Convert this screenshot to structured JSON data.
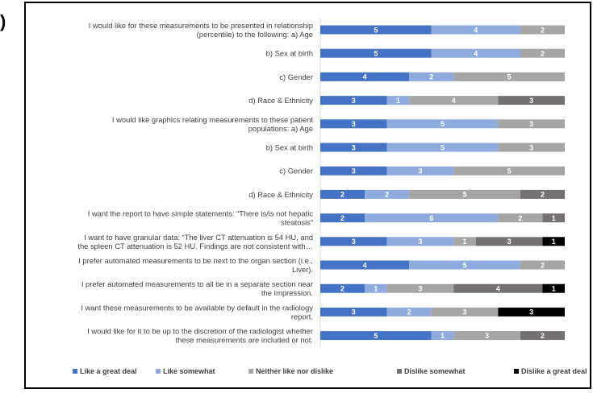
{
  "panel_label": ")",
  "chart_data": {
    "type": "bar",
    "orientation": "horizontal",
    "stacked": true,
    "grid": false,
    "legend_position": "bottom",
    "categories": [
      [
        "I would like for these measurements to be presented in relationship",
        "(percentile) to the following: a) Age"
      ],
      [
        "b) Sex at birth"
      ],
      [
        "c) Gender"
      ],
      [
        "d) Race & Ethnicity"
      ],
      [
        "I would like graphics relating measurements to these patient",
        "populations: a) Age"
      ],
      [
        "b) Sex at birth"
      ],
      [
        "c) Gender"
      ],
      [
        "d) Race & Ethnicity"
      ],
      [
        "I want the report to have simple statements: “There is/is not hepatic",
        "steatosis”"
      ],
      [
        "I want to have granular data: “The liver CT attenuation is 54 HU, and",
        "the spleen CT attenuation is 52 HU. Findings are not consistent with…"
      ],
      [
        "I prefer automated measurements to be next to the organ section (i.e.,",
        "Liver)."
      ],
      [
        "I prefer automated measurements to all be in a separate section near",
        "the Impression."
      ],
      [
        "I want these measurements to be available by default in the radiology",
        "report."
      ],
      [
        "I would like for it to be up to the discretion of the radiologist whether",
        "these measurements are included or not."
      ]
    ],
    "series": [
      {
        "name": "Like a great deal",
        "color": "#4472c4",
        "label_color": "#ffffff",
        "values": [
          5,
          5,
          4,
          3,
          3,
          3,
          3,
          2,
          2,
          3,
          4,
          2,
          3,
          5
        ]
      },
      {
        "name": "Like somewhat",
        "color": "#8faadc",
        "label_color": "#ffffff",
        "values": [
          4,
          4,
          2,
          1,
          5,
          5,
          3,
          2,
          6,
          3,
          5,
          1,
          2,
          1
        ]
      },
      {
        "name": "Neither like nor dislike",
        "color": "#a5a5a5",
        "label_color": "#ffffff",
        "values": [
          2,
          2,
          5,
          4,
          3,
          3,
          5,
          5,
          2,
          1,
          2,
          3,
          3,
          3
        ]
      },
      {
        "name": "Dislike somewhat",
        "color": "#767171",
        "label_color": "#ffffff",
        "values": [
          0,
          0,
          0,
          3,
          0,
          0,
          0,
          2,
          1,
          3,
          0,
          4,
          0,
          2
        ]
      },
      {
        "name": "Dislike a great deal",
        "color": "#000000",
        "label_color": "#ffffff",
        "values": [
          0,
          0,
          0,
          0,
          0,
          0,
          0,
          0,
          0,
          1,
          0,
          1,
          3,
          0
        ]
      }
    ],
    "xlim": [
      0,
      11
    ]
  }
}
